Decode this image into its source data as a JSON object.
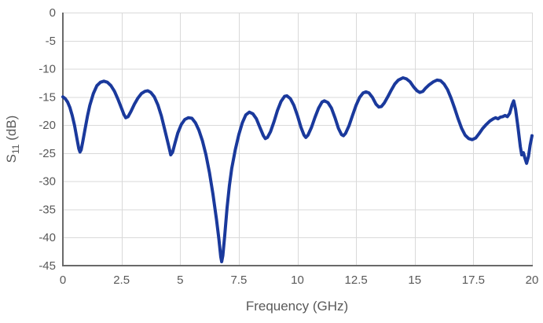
{
  "colors": {
    "background": "#ffffff",
    "grid": "#d9d9d9",
    "axis": "#6a6a6a",
    "tick_text": "#595959",
    "trace": "#1a399c"
  },
  "chart_data": {
    "type": "line",
    "title": "",
    "xlabel": "Frequency (GHz)",
    "ylabel": "S11 (dB)",
    "ylabel_base": "S",
    "ylabel_sub": "11",
    "ylabel_unit": " (dB)",
    "xlim": [
      0,
      20
    ],
    "ylim": [
      -45,
      0
    ],
    "grid": true,
    "legend": "none",
    "x_ticks": [
      0,
      2.5,
      5,
      7.5,
      10,
      12.5,
      15,
      17.5,
      20
    ],
    "x_tick_labels": [
      "0",
      "2.5",
      "5",
      "7.5",
      "10",
      "12.5",
      "15",
      "17.5",
      "20"
    ],
    "y_ticks": [
      0,
      -5,
      -10,
      -15,
      -20,
      -25,
      -30,
      -35,
      -40,
      -45
    ],
    "y_tick_labels": [
      "0",
      "-5",
      "-10",
      "-15",
      "-20",
      "-25",
      "-30",
      "-35",
      "-40",
      "-45"
    ],
    "line_width": 4,
    "series": [
      {
        "name": "S11",
        "points": [
          [
            0.0,
            -15.0
          ],
          [
            0.1,
            -15.3
          ],
          [
            0.2,
            -15.9
          ],
          [
            0.3,
            -16.9
          ],
          [
            0.4,
            -18.3
          ],
          [
            0.5,
            -20.1
          ],
          [
            0.6,
            -22.4
          ],
          [
            0.68,
            -24.2
          ],
          [
            0.73,
            -24.8
          ],
          [
            0.78,
            -24.4
          ],
          [
            0.85,
            -22.9
          ],
          [
            0.95,
            -20.6
          ],
          [
            1.05,
            -18.4
          ],
          [
            1.15,
            -16.5
          ],
          [
            1.3,
            -14.4
          ],
          [
            1.45,
            -13.0
          ],
          [
            1.6,
            -12.4
          ],
          [
            1.75,
            -12.2
          ],
          [
            1.9,
            -12.4
          ],
          [
            2.05,
            -13.0
          ],
          [
            2.2,
            -14.0
          ],
          [
            2.35,
            -15.4
          ],
          [
            2.5,
            -17.0
          ],
          [
            2.6,
            -18.1
          ],
          [
            2.68,
            -18.7
          ],
          [
            2.78,
            -18.5
          ],
          [
            2.9,
            -17.6
          ],
          [
            3.05,
            -16.3
          ],
          [
            3.2,
            -15.2
          ],
          [
            3.35,
            -14.4
          ],
          [
            3.5,
            -14.0
          ],
          [
            3.62,
            -13.9
          ],
          [
            3.75,
            -14.2
          ],
          [
            3.9,
            -15.0
          ],
          [
            4.05,
            -16.4
          ],
          [
            4.2,
            -18.4
          ],
          [
            4.35,
            -20.9
          ],
          [
            4.5,
            -23.5
          ],
          [
            4.6,
            -25.3
          ],
          [
            4.68,
            -24.8
          ],
          [
            4.78,
            -23.2
          ],
          [
            4.9,
            -21.4
          ],
          [
            5.05,
            -19.9
          ],
          [
            5.2,
            -19.0
          ],
          [
            5.35,
            -18.7
          ],
          [
            5.5,
            -18.8
          ],
          [
            5.65,
            -19.6
          ],
          [
            5.8,
            -20.9
          ],
          [
            5.95,
            -22.8
          ],
          [
            6.1,
            -25.3
          ],
          [
            6.25,
            -28.5
          ],
          [
            6.4,
            -32.3
          ],
          [
            6.55,
            -36.8
          ],
          [
            6.65,
            -40.2
          ],
          [
            6.73,
            -43.4
          ],
          [
            6.77,
            -44.3
          ],
          [
            6.82,
            -43.2
          ],
          [
            6.9,
            -39.6
          ],
          [
            7.0,
            -34.8
          ],
          [
            7.1,
            -30.8
          ],
          [
            7.2,
            -27.7
          ],
          [
            7.35,
            -24.4
          ],
          [
            7.5,
            -21.7
          ],
          [
            7.65,
            -19.6
          ],
          [
            7.8,
            -18.2
          ],
          [
            7.95,
            -17.7
          ],
          [
            8.1,
            -18.0
          ],
          [
            8.25,
            -18.9
          ],
          [
            8.4,
            -20.4
          ],
          [
            8.55,
            -21.9
          ],
          [
            8.63,
            -22.4
          ],
          [
            8.72,
            -22.2
          ],
          [
            8.85,
            -21.2
          ],
          [
            9.0,
            -19.4
          ],
          [
            9.15,
            -17.4
          ],
          [
            9.3,
            -15.8
          ],
          [
            9.45,
            -14.9
          ],
          [
            9.55,
            -14.8
          ],
          [
            9.7,
            -15.3
          ],
          [
            9.85,
            -16.5
          ],
          [
            10.0,
            -18.3
          ],
          [
            10.15,
            -20.4
          ],
          [
            10.28,
            -21.8
          ],
          [
            10.36,
            -22.2
          ],
          [
            10.45,
            -21.8
          ],
          [
            10.6,
            -20.4
          ],
          [
            10.75,
            -18.6
          ],
          [
            10.9,
            -17.0
          ],
          [
            11.05,
            -15.9
          ],
          [
            11.15,
            -15.7
          ],
          [
            11.3,
            -16.0
          ],
          [
            11.45,
            -17.0
          ],
          [
            11.6,
            -18.7
          ],
          [
            11.75,
            -20.6
          ],
          [
            11.88,
            -21.7
          ],
          [
            11.96,
            -21.9
          ],
          [
            12.05,
            -21.5
          ],
          [
            12.2,
            -20.1
          ],
          [
            12.35,
            -18.3
          ],
          [
            12.5,
            -16.5
          ],
          [
            12.65,
            -15.1
          ],
          [
            12.8,
            -14.3
          ],
          [
            12.92,
            -14.1
          ],
          [
            13.05,
            -14.3
          ],
          [
            13.2,
            -15.1
          ],
          [
            13.35,
            -16.3
          ],
          [
            13.47,
            -16.8
          ],
          [
            13.58,
            -16.7
          ],
          [
            13.7,
            -16.1
          ],
          [
            13.85,
            -15.0
          ],
          [
            14.0,
            -13.8
          ],
          [
            14.15,
            -12.7
          ],
          [
            14.3,
            -12.0
          ],
          [
            14.5,
            -11.6
          ],
          [
            14.65,
            -11.8
          ],
          [
            14.8,
            -12.3
          ],
          [
            14.95,
            -13.2
          ],
          [
            15.1,
            -13.9
          ],
          [
            15.22,
            -14.2
          ],
          [
            15.35,
            -14.0
          ],
          [
            15.45,
            -13.5
          ],
          [
            15.6,
            -12.9
          ],
          [
            15.8,
            -12.3
          ],
          [
            15.95,
            -12.0
          ],
          [
            16.1,
            -12.1
          ],
          [
            16.25,
            -12.7
          ],
          [
            16.4,
            -13.7
          ],
          [
            16.55,
            -15.2
          ],
          [
            16.7,
            -17.0
          ],
          [
            16.85,
            -18.9
          ],
          [
            17.0,
            -20.6
          ],
          [
            17.15,
            -21.8
          ],
          [
            17.3,
            -22.4
          ],
          [
            17.45,
            -22.6
          ],
          [
            17.6,
            -22.3
          ],
          [
            17.75,
            -21.5
          ],
          [
            17.9,
            -20.6
          ],
          [
            18.05,
            -19.9
          ],
          [
            18.2,
            -19.3
          ],
          [
            18.35,
            -18.9
          ],
          [
            18.45,
            -18.7
          ],
          [
            18.55,
            -18.9
          ],
          [
            18.65,
            -18.6
          ],
          [
            18.75,
            -18.5
          ],
          [
            18.85,
            -18.3
          ],
          [
            18.95,
            -18.5
          ],
          [
            19.05,
            -17.9
          ],
          [
            19.15,
            -16.4
          ],
          [
            19.22,
            -15.7
          ],
          [
            19.3,
            -17.2
          ],
          [
            19.4,
            -20.3
          ],
          [
            19.5,
            -23.8
          ],
          [
            19.56,
            -25.3
          ],
          [
            19.63,
            -24.9
          ],
          [
            19.7,
            -25.9
          ],
          [
            19.77,
            -26.8
          ],
          [
            19.85,
            -25.6
          ],
          [
            19.92,
            -23.6
          ],
          [
            20.0,
            -21.9
          ]
        ]
      }
    ]
  }
}
